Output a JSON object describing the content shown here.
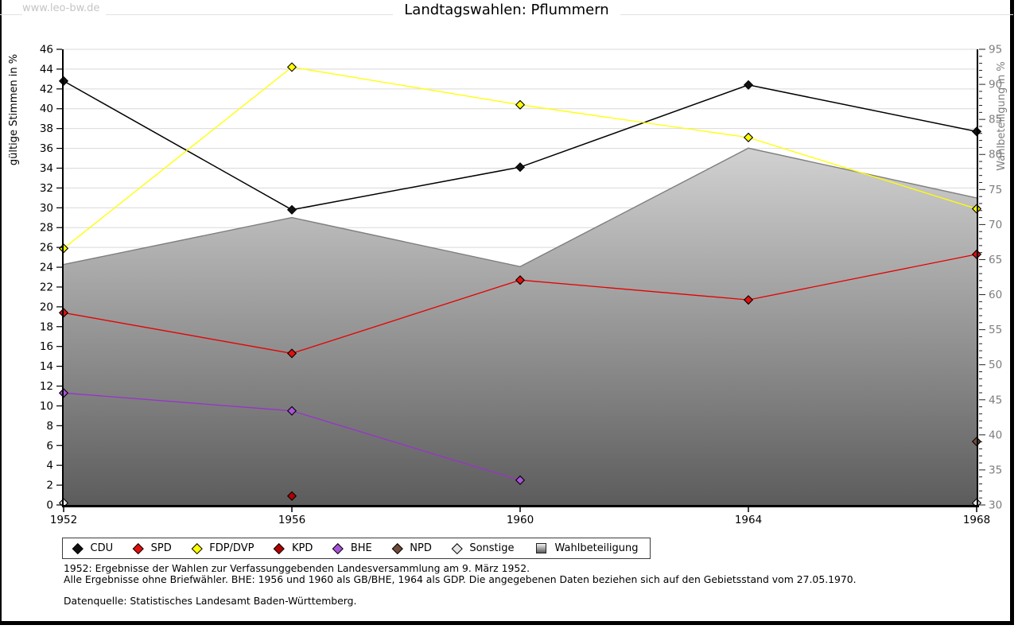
{
  "page": {
    "watermark": "www.leo-bw.de",
    "title": "Landtagswahlen: Pflummern"
  },
  "chart_data": {
    "type": "line",
    "title": "Landtagswahlen: Pflummern",
    "x_years": [
      1952,
      1956,
      1960,
      1964,
      1968
    ],
    "x_tick_labels": [
      "1952",
      "1956",
      "1960",
      "1964",
      "1968"
    ],
    "x_range": [
      1952,
      1968
    ],
    "grid": true,
    "left_axis": {
      "title": "gültige Stimmen in %",
      "min": 0,
      "max": 46,
      "tick_step": 2,
      "text_color": "#000000"
    },
    "right_axis": {
      "title": "Wahlbeteiligung in %",
      "min": 30,
      "max": 95,
      "minor_step": 1,
      "label_step": 5,
      "text_color": "#7d7d7d"
    },
    "series": [
      {
        "name": "Wahlbeteiligung",
        "style": "area",
        "axis": "right",
        "color": "#7f7f7f",
        "fill_gradient": [
          "#f2f2f2",
          "#5c5c5c"
        ],
        "points": [
          [
            1952,
            64.3
          ],
          [
            1956,
            71.0
          ],
          [
            1960,
            64.0
          ],
          [
            1964,
            80.9
          ],
          [
            1968,
            73.8
          ]
        ]
      },
      {
        "name": "CDU",
        "style": "line",
        "axis": "left",
        "color": "#000000",
        "marker_color": "#111111",
        "points": [
          [
            1952,
            42.8
          ],
          [
            1956,
            29.8
          ],
          [
            1960,
            34.1
          ],
          [
            1964,
            42.4
          ],
          [
            1968,
            37.7
          ]
        ]
      },
      {
        "name": "SPD",
        "style": "line",
        "axis": "left",
        "color": "#e60000",
        "marker_color": "#e01010",
        "points": [
          [
            1952,
            19.4
          ],
          [
            1956,
            15.3
          ],
          [
            1960,
            22.7
          ],
          [
            1964,
            20.7
          ],
          [
            1968,
            25.3
          ]
        ]
      },
      {
        "name": "FDP/DVP",
        "style": "line",
        "axis": "left",
        "color": "#ffff00",
        "marker_color": "#ffff00",
        "points": [
          [
            1952,
            25.9
          ],
          [
            1956,
            44.2
          ],
          [
            1960,
            40.4
          ],
          [
            1964,
            37.1
          ],
          [
            1968,
            29.9
          ]
        ]
      },
      {
        "name": "KPD",
        "style": "markers-only",
        "axis": "left",
        "color": "#a50000",
        "marker_color": "#b00000",
        "points": [
          [
            1956,
            0.9
          ]
        ]
      },
      {
        "name": "BHE",
        "style": "line",
        "axis": "left",
        "color": "#9933cc",
        "marker_color": "#a854d6",
        "points": [
          [
            1952,
            11.3
          ],
          [
            1956,
            9.5
          ],
          [
            1960,
            2.5
          ]
        ]
      },
      {
        "name": "NPD",
        "style": "markers-only",
        "axis": "left",
        "color": "#6f4b39",
        "marker_color": "#6f4b39",
        "points": [
          [
            1968,
            6.4
          ]
        ]
      },
      {
        "name": "Sonstige",
        "style": "markers-only",
        "axis": "left",
        "color": "#bbbbbb",
        "marker_color": "#e6e6e6",
        "points": [
          [
            1952,
            0.2
          ],
          [
            1968,
            0.2
          ]
        ]
      }
    ],
    "legend_order": [
      "CDU",
      "SPD",
      "FDP/DVP",
      "KPD",
      "BHE",
      "NPD",
      "Sonstige",
      "Wahlbeteiligung"
    ],
    "legend_position": "bottom"
  },
  "footnotes": {
    "line1": "1952: Ergebnisse der Wahlen zur Verfassunggebenden Landesversammlung am 9. März 1952.",
    "line2": "Alle Ergebnisse ohne Briefwähler. BHE: 1956 und 1960 als GB/BHE, 1964 als GDP. Die angegebenen Daten beziehen sich auf den Gebietsstand vom 27.05.1970.",
    "source": "Datenquelle: Statistisches Landesamt Baden-Württemberg."
  }
}
